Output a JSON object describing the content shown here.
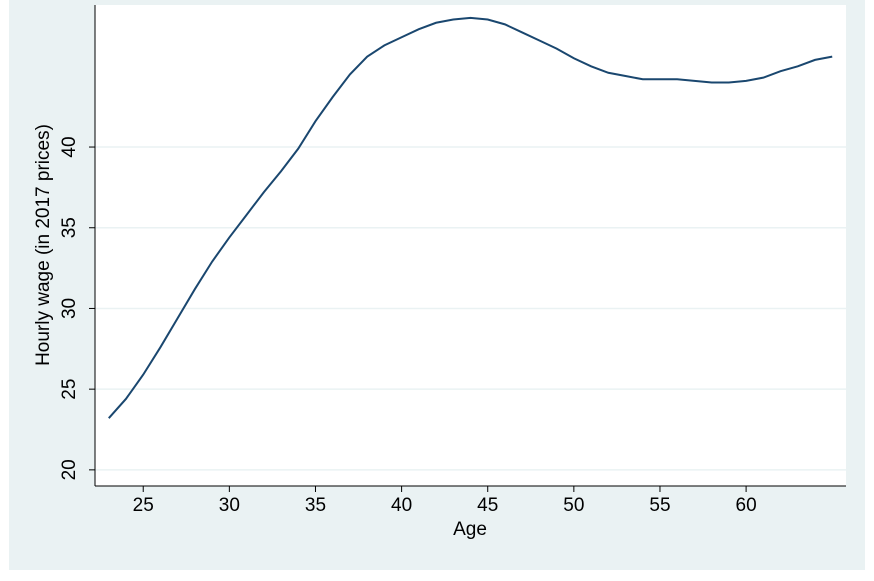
{
  "chart_data": {
    "type": "line",
    "xlabel": "Age",
    "ylabel": "Hourly wage (in 2017 prices)",
    "x": [
      23,
      24,
      25,
      26,
      27,
      28,
      29,
      30,
      31,
      32,
      33,
      34,
      35,
      36,
      37,
      38,
      39,
      40,
      41,
      42,
      43,
      44,
      45,
      46,
      47,
      48,
      49,
      50,
      51,
      52,
      53,
      54,
      55,
      56,
      57,
      58,
      59,
      60,
      61,
      62,
      63,
      64,
      65
    ],
    "series": [
      {
        "color": "#1a476f",
        "values": [
          23.2,
          24.4,
          25.9,
          27.6,
          29.4,
          31.2,
          32.9,
          34.4,
          35.8,
          37.2,
          38.5,
          39.9,
          41.6,
          43.1,
          44.5,
          45.6,
          46.3,
          46.8,
          47.3,
          47.7,
          47.9,
          48.0,
          47.9,
          47.6,
          47.1,
          46.6,
          46.1,
          45.5,
          45.0,
          44.6,
          44.4,
          44.2,
          44.2,
          44.2,
          44.1,
          44.0,
          44.0,
          44.1,
          44.3,
          44.7,
          45.0,
          45.4,
          45.6
        ]
      }
    ],
    "xlim": [
      22.2,
      65.8
    ],
    "xticks": [
      25,
      30,
      35,
      40,
      45,
      50,
      55,
      60
    ],
    "ylim": [
      19.0,
      48.8
    ],
    "yticks": [
      20,
      25,
      30,
      35,
      40
    ],
    "grid": true
  }
}
